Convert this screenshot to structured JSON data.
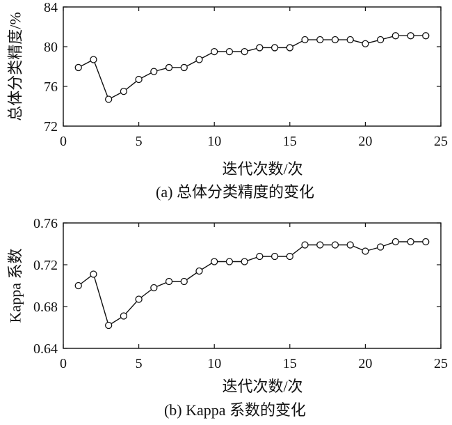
{
  "chart_data": [
    {
      "type": "line",
      "caption": "(a) 总体分类精度的变化",
      "xlabel": "迭代次数/次",
      "ylabel": "总体分类精度/%",
      "xlim": [
        0,
        25
      ],
      "ylim": [
        72,
        84
      ],
      "xticks": [
        0,
        5,
        10,
        15,
        20,
        25
      ],
      "yticks": [
        72,
        76,
        80,
        84
      ],
      "grid": false,
      "marker": "hollow-circle",
      "series": [
        {
          "x": [
            1,
            2,
            3,
            4,
            5,
            6,
            7,
            8,
            9,
            10,
            11,
            12,
            13,
            14,
            15,
            16,
            17,
            18,
            19,
            20,
            21,
            22,
            23,
            24
          ],
          "values": [
            77.9,
            78.7,
            74.7,
            75.5,
            76.7,
            77.5,
            77.9,
            77.9,
            78.7,
            79.5,
            79.5,
            79.5,
            79.9,
            79.9,
            79.9,
            80.7,
            80.7,
            80.7,
            80.7,
            80.3,
            80.7,
            81.1,
            81.1,
            81.1
          ]
        }
      ]
    },
    {
      "type": "line",
      "caption": "(b) Kappa 系数的变化",
      "xlabel": "迭代次数/次",
      "ylabel": "Kappa 系数",
      "xlim": [
        0,
        25
      ],
      "ylim": [
        0.64,
        0.76
      ],
      "xticks": [
        0,
        5,
        10,
        15,
        20,
        25
      ],
      "yticks": [
        0.64,
        0.68,
        0.72,
        0.76
      ],
      "ytick_labels": [
        "0.64",
        "0.68",
        "0.72",
        "0.76"
      ],
      "grid": false,
      "marker": "hollow-circle",
      "series": [
        {
          "x": [
            1,
            2,
            3,
            4,
            5,
            6,
            7,
            8,
            9,
            10,
            11,
            12,
            13,
            14,
            15,
            16,
            17,
            18,
            19,
            20,
            21,
            22,
            23,
            24
          ],
          "values": [
            0.7,
            0.711,
            0.662,
            0.671,
            0.687,
            0.698,
            0.704,
            0.704,
            0.714,
            0.723,
            0.723,
            0.723,
            0.728,
            0.728,
            0.728,
            0.739,
            0.739,
            0.739,
            0.739,
            0.733,
            0.737,
            0.742,
            0.742,
            0.742
          ]
        }
      ]
    }
  ]
}
